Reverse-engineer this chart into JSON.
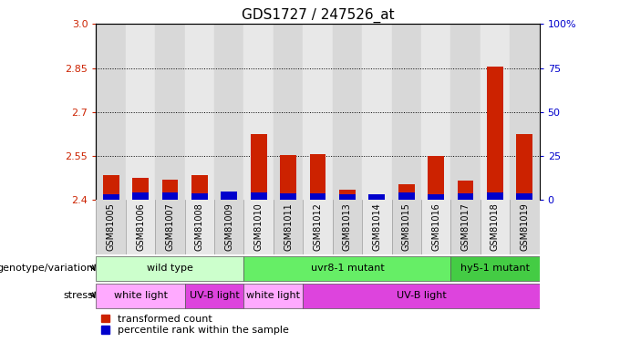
{
  "title": "GDS1727 / 247526_at",
  "samples": [
    "GSM81005",
    "GSM81006",
    "GSM81007",
    "GSM81008",
    "GSM81009",
    "GSM81010",
    "GSM81011",
    "GSM81012",
    "GSM81013",
    "GSM81014",
    "GSM81015",
    "GSM81016",
    "GSM81017",
    "GSM81018",
    "GSM81019"
  ],
  "red_values": [
    2.485,
    2.475,
    2.468,
    2.485,
    2.405,
    2.625,
    2.552,
    2.557,
    2.435,
    2.413,
    2.455,
    2.551,
    2.465,
    2.855,
    2.625
  ],
  "blue_values": [
    0.02,
    0.025,
    0.025,
    0.022,
    0.03,
    0.025,
    0.022,
    0.022,
    0.02,
    0.02,
    0.025,
    0.02,
    0.022,
    0.025,
    0.022
  ],
  "ymin": 2.4,
  "ymax": 3.0,
  "yticks": [
    2.4,
    2.55,
    2.7,
    2.85,
    3.0
  ],
  "y_right_ticks": [
    0,
    25,
    50,
    75,
    100
  ],
  "y_right_labels": [
    "0",
    "25",
    "50",
    "75",
    "100%"
  ],
  "dotted_lines": [
    2.55,
    2.7,
    2.85
  ],
  "bar_width": 0.55,
  "bar_color_red": "#cc2200",
  "bar_color_blue": "#0000cc",
  "baseline": 2.4,
  "genotype_groups": [
    {
      "label": "wild type",
      "start": 0,
      "end": 5,
      "color": "#ccffcc"
    },
    {
      "label": "uvr8-1 mutant",
      "start": 5,
      "end": 12,
      "color": "#66ee66"
    },
    {
      "label": "hy5-1 mutant",
      "start": 12,
      "end": 15,
      "color": "#44cc44"
    }
  ],
  "stress_groups": [
    {
      "label": "white light",
      "start": 0,
      "end": 3,
      "color": "#ffaaff"
    },
    {
      "label": "UV-B light",
      "start": 3,
      "end": 5,
      "color": "#dd44dd"
    },
    {
      "label": "white light",
      "start": 5,
      "end": 7,
      "color": "#ffaaff"
    },
    {
      "label": "UV-B light",
      "start": 7,
      "end": 15,
      "color": "#dd44dd"
    }
  ],
  "legend_red": "transformed count",
  "legend_blue": "percentile rank within the sample",
  "genotype_label": "genotype/variation",
  "stress_label": "stress",
  "tick_color_left": "#cc2200",
  "tick_color_right": "#0000cc",
  "bg_color_even": "#d8d8d8",
  "bg_color_odd": "#e8e8e8"
}
